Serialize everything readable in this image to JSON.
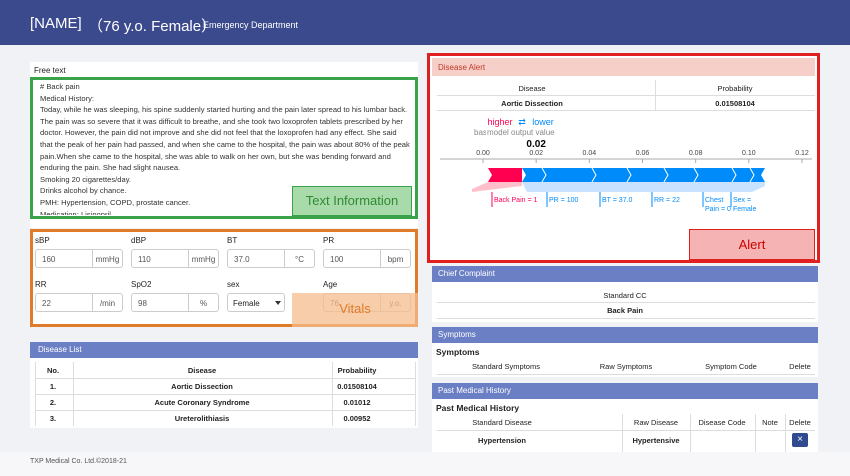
{
  "header": {
    "name": "[NAME]",
    "age_sex": "（76 y.o. Female）",
    "department": "Emergency Department"
  },
  "free_text": {
    "label": "Free text",
    "lines": [
      "# Back pain",
      "Medical History:",
      "Today, while he was sleeping, his spine suddenly started hurting and the pain later spread to his lumbar back. The pain was so severe that it was difficult to breathe, and she took two loxoprofen tablets prescribed by her doctor. However, the pain did not improve and she did not feel that the loxoprofen had any effect. She said that the peak of her pain had passed, and when she came to the hospital, the pain was about 80% of the peak pain.When she came to the hospital, she was able to walk on her own, but she was bending forward and enduring the pain. She had slight nausea.",
      "Smoking 20 cigarettes/day.",
      "Drinks alcohol by chance.",
      "PMH: Hypertension, COPD, prostate cancer.",
      "Medication: Lisinopril"
    ]
  },
  "vitals": {
    "fields": [
      {
        "label": "sBP",
        "value": 160,
        "unit": "mmHg"
      },
      {
        "label": "dBP",
        "value": 110,
        "unit": "mmHg"
      },
      {
        "label": "BT",
        "value": "37.0",
        "unit": "°C"
      },
      {
        "label": "PR",
        "value": 100,
        "unit": "bpm"
      },
      {
        "label": "RR",
        "value": 22,
        "unit": "/min"
      },
      {
        "label": "SpO2",
        "value": 98,
        "unit": "%"
      },
      {
        "label": "sex",
        "value": "Female"
      },
      {
        "label": "Age",
        "value": 76,
        "unit": "y.o."
      }
    ]
  },
  "disease_list": {
    "title": "Disease List",
    "columns": [
      "No.",
      "Disease",
      "Probability"
    ],
    "rows": [
      [
        "1.",
        "Aortic Dissection",
        "0.01508104"
      ],
      [
        "2.",
        "Acute Coronary Syndrome",
        "0.01012"
      ],
      [
        "3.",
        "Ureterolithiasis",
        "0.00952"
      ]
    ]
  },
  "disease_alert": {
    "title": "Disease Alert",
    "columns": [
      "Disease",
      "Probability"
    ],
    "row": [
      "Aortic Dissection",
      "0.01508104"
    ],
    "force_plot": {
      "higher": "higher",
      "arrows": "⇄",
      "lower": "lower",
      "base_value": "base value",
      "output_label": "model output value",
      "output_value": 0.02,
      "ticks": [
        {
          "value": 0,
          "label": "0.00"
        },
        {
          "value": 0.02,
          "label": "0.02"
        },
        {
          "value": 0.04,
          "label": "0.04"
        },
        {
          "value": 0.06,
          "label": "0.06"
        },
        {
          "value": 0.08,
          "label": "0.08"
        },
        {
          "value": 0.1,
          "label": "0.10"
        },
        {
          "value": 0.12,
          "label": "0.12"
        }
      ],
      "features": [
        "Back Pain = 1",
        "PR = 100",
        "BT = 37.0",
        "RR = 22",
        "Chest Pain = 0",
        "Sex = Female"
      ]
    }
  },
  "chief_complaint": {
    "title": "Chief Complaint",
    "column": "Standard CC",
    "value": "Back Pain"
  },
  "symptoms": {
    "title": "Symptoms",
    "subtitle": "Symptoms",
    "columns": [
      "Standard Symptoms",
      "Raw Symptoms",
      "Symptom Code",
      "Delete"
    ]
  },
  "past_medical_history": {
    "title": "Past Medical History",
    "subtitle": "Past Medical History",
    "columns": [
      "Standard Disease",
      "Raw Disease",
      "Disease Code",
      "Note",
      "Delete"
    ],
    "rows": [
      {
        "standard": "Hypertension",
        "raw": "Hypertensive",
        "delete": "×"
      }
    ]
  },
  "annotations": {
    "text": "Text Information",
    "vitals": "Vitals",
    "alert": "Alert"
  },
  "footer": "TXP Medical Co. Ltd.©2018-21"
}
